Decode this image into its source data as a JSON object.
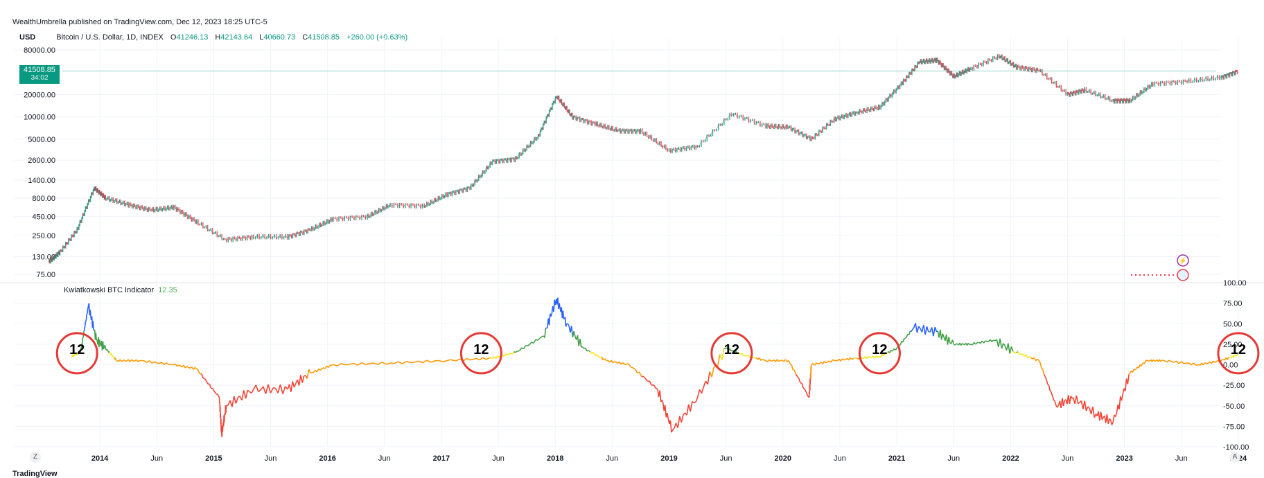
{
  "header": {
    "published": "WealthUmbrella published on TradingView.com, Dec 12, 2023 18:25 UTC-5",
    "currency": "USD",
    "symbol": "Bitcoin / U.S. Dollar, 1D, INDEX",
    "open_label": "O",
    "open": "41246.13",
    "high_label": "H",
    "high": "42143.64",
    "low_label": "L",
    "low": "40660.73",
    "close_label": "C",
    "close": "41508.85",
    "change": "+260.00 (+0.63%)"
  },
  "price_tag": {
    "price": "41508.85",
    "countdown": "34:02"
  },
  "indicator": {
    "name": "Kwiatkowski BTC Indicator",
    "value": "12.35"
  },
  "annotation_label": "12",
  "footer": {
    "brand": "TradingView",
    "left_button": "Z",
    "right_button": "A"
  },
  "colors": {
    "up": "#089981",
    "down": "#f23645",
    "blue": "#2962ff",
    "green": "#43a047",
    "yellow": "#f5e51c",
    "orange": "#ff9800",
    "red": "#f44336",
    "circle": "#e53935"
  },
  "chart_data": [
    {
      "type": "line",
      "title": "",
      "y_scale": "log",
      "y_ticks": [
        "80000.00",
        "20000.00",
        "10000.00",
        "5000.00",
        "2600.00",
        "1400.00",
        "800.00",
        "450.00",
        "250.00",
        "130.00",
        "75.00"
      ],
      "x_ticks": [
        "2014",
        "Jun",
        "2015",
        "Jun",
        "2016",
        "Jun",
        "2017",
        "Jun",
        "2018",
        "Jun",
        "2019",
        "Jun",
        "2020",
        "Jun",
        "2021",
        "Jun",
        "2022",
        "Jun",
        "2023",
        "Jun",
        "2024"
      ],
      "series": [
        {
          "x": [
            2013.5,
            2013.6,
            2013.75,
            2013.9,
            2014.0,
            2014.2,
            2014.4,
            2014.6,
            2014.8,
            2015.05,
            2015.3,
            2015.6,
            2015.8,
            2016.0,
            2016.3,
            2016.5,
            2016.8,
            2017.0,
            2017.2,
            2017.4,
            2017.6,
            2017.8,
            2017.96,
            2018.1,
            2018.3,
            2018.5,
            2018.7,
            2018.95,
            2019.2,
            2019.5,
            2019.8,
            2020.0,
            2020.2,
            2020.4,
            2020.6,
            2020.8,
            2021.0,
            2021.15,
            2021.3,
            2021.45,
            2021.6,
            2021.85,
            2022.0,
            2022.2,
            2022.45,
            2022.6,
            2022.85,
            2023.0,
            2023.2,
            2023.5,
            2023.8,
            2023.95
          ],
          "y": [
            110,
            150,
            300,
            1100,
            800,
            650,
            550,
            600,
            380,
            220,
            240,
            240,
            300,
            420,
            450,
            650,
            630,
            900,
            1100,
            2500,
            2700,
            5500,
            19000,
            10000,
            8000,
            6500,
            6400,
            3500,
            4000,
            11000,
            7500,
            7200,
            5000,
            9300,
            11500,
            13500,
            29000,
            55000,
            58000,
            35000,
            45000,
            66000,
            47000,
            42000,
            20000,
            23000,
            16500,
            16600,
            28000,
            30000,
            34000,
            41508
          ]
        }
      ]
    },
    {
      "type": "line",
      "title": "Kwiatkowski BTC Indicator",
      "ylim": [
        -100,
        100
      ],
      "y_ticks": [
        "100.00",
        "75.00",
        "50.00",
        "25.00",
        "0.00",
        "-25.00",
        "-50.00",
        "-75.00",
        "-100.00"
      ],
      "series": [
        {
          "name": "Kwiatkowski BTC Indicator",
          "x": [
            2013.7,
            2013.78,
            2013.85,
            2013.92,
            2014.0,
            2014.1,
            2014.3,
            2014.6,
            2014.8,
            2015.0,
            2015.02,
            2015.06,
            2015.3,
            2015.6,
            2015.8,
            2016.0,
            2016.5,
            2017.0,
            2017.4,
            2017.6,
            2017.85,
            2017.96,
            2018.05,
            2018.2,
            2018.4,
            2018.6,
            2018.85,
            2018.98,
            2019.2,
            2019.45,
            2019.6,
            2019.8,
            2020.0,
            2020.18,
            2020.2,
            2020.4,
            2020.6,
            2020.8,
            2020.95,
            2021.1,
            2021.3,
            2021.45,
            2021.6,
            2021.8,
            2022.0,
            2022.2,
            2022.35,
            2022.5,
            2022.7,
            2022.85,
            2023.0,
            2023.15,
            2023.3,
            2023.6,
            2023.8,
            2023.95
          ],
          "y": [
            10,
            15,
            72,
            30,
            20,
            5,
            5,
            0,
            -5,
            -40,
            -85,
            -50,
            -30,
            -30,
            -10,
            0,
            2,
            5,
            8,
            15,
            35,
            80,
            50,
            20,
            5,
            0,
            -30,
            -80,
            -40,
            20,
            12,
            5,
            5,
            -40,
            0,
            5,
            8,
            10,
            20,
            45,
            40,
            25,
            25,
            30,
            15,
            5,
            -50,
            -40,
            -60,
            -70,
            -10,
            5,
            5,
            0,
            5,
            12.35
          ]
        }
      ]
    }
  ]
}
